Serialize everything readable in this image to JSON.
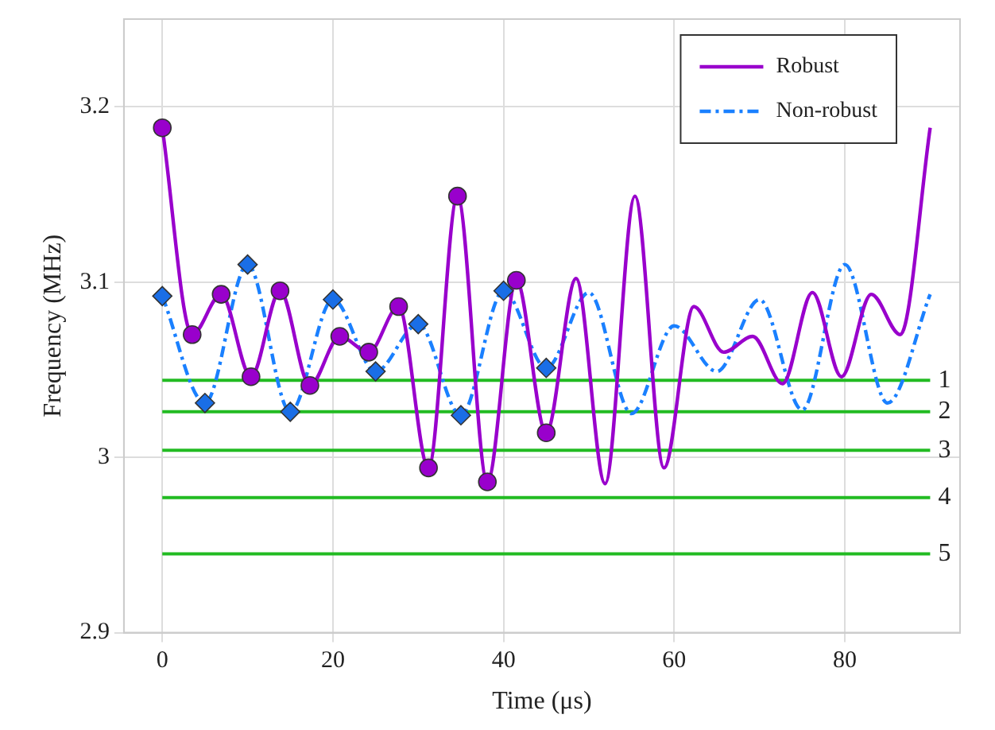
{
  "chart_data": {
    "type": "line",
    "xlabel": "Time (μs)",
    "ylabel": "Frequency (MHz)",
    "xlim": [
      -4.5,
      93.5
    ],
    "xticks": [
      0,
      20,
      40,
      60,
      80
    ],
    "ylim": [
      2.9,
      3.25
    ],
    "yticks": [
      2.9,
      3,
      3.1,
      3.2
    ],
    "grid": true,
    "legend": "top right",
    "series": [
      {
        "name": "Robust",
        "color": "#9900cc",
        "line_style": "solid",
        "marker": "none",
        "x": [
          0,
          3.5,
          6.9,
          10.4,
          13.8,
          17.3,
          20.8,
          24.2,
          27.7,
          31.2,
          34.6,
          38.1,
          41.5,
          45,
          48.5,
          51.9,
          55.4,
          58.8,
          62.3,
          65.8,
          69.2,
          72.7,
          76.2,
          79.6,
          83.1,
          86.5,
          90
        ],
        "values": [
          3.188,
          3.07,
          3.093,
          3.046,
          3.095,
          3.041,
          3.069,
          3.06,
          3.086,
          2.994,
          3.149,
          2.986,
          3.101,
          3.014,
          3.102,
          2.985,
          3.149,
          2.994,
          3.086,
          3.06,
          3.069,
          3.042,
          3.094,
          3.046,
          3.093,
          3.07,
          3.188
        ]
      },
      {
        "name": "Non-robust",
        "color": "#1a80ff",
        "line_style": "dashed",
        "marker": "none",
        "x": [
          0,
          5,
          10,
          15,
          20,
          25,
          30,
          35,
          40,
          45,
          50,
          55,
          60,
          65,
          70,
          75,
          80,
          85,
          90
        ],
        "values": [
          3.092,
          3.031,
          3.11,
          3.026,
          3.09,
          3.049,
          3.076,
          3.024,
          3.095,
          3.051,
          3.094,
          3.025,
          3.075,
          3.049,
          3.09,
          3.027,
          3.11,
          3.031,
          3.093
        ]
      },
      {
        "type": "scatter",
        "color": "#9900cc",
        "marker": "circle",
        "x": [
          0,
          3.5,
          6.9,
          10.4,
          13.8,
          17.3,
          20.8,
          24.2,
          27.7,
          31.2,
          34.6,
          38.1,
          41.5,
          45
        ],
        "values": [
          3.188,
          3.07,
          3.093,
          3.046,
          3.095,
          3.041,
          3.069,
          3.06,
          3.086,
          2.994,
          3.149,
          2.986,
          3.101,
          3.014
        ]
      },
      {
        "type": "scatter",
        "color": "#1a6ee6",
        "marker": "diamond",
        "x": [
          0,
          5,
          10,
          15,
          20,
          25,
          30,
          35,
          40,
          45
        ],
        "values": [
          3.092,
          3.031,
          3.11,
          3.026,
          3.09,
          3.049,
          3.076,
          3.024,
          3.095,
          3.051
        ]
      },
      {
        "name": "1",
        "color": "#22bb22",
        "x": [
          0,
          90
        ],
        "values": [
          3.044,
          3.044
        ]
      },
      {
        "name": "2",
        "color": "#22bb22",
        "x": [
          0,
          90
        ],
        "values": [
          3.026,
          3.026
        ]
      },
      {
        "name": "3",
        "color": "#22bb22",
        "x": [
          0,
          90
        ],
        "values": [
          3.004,
          3.004
        ]
      },
      {
        "name": "4",
        "color": "#22bb22",
        "x": [
          0,
          90
        ],
        "values": [
          2.977,
          2.977
        ]
      },
      {
        "name": "5",
        "color": "#22bb22",
        "x": [
          0,
          90
        ],
        "values": [
          2.945,
          2.945
        ]
      }
    ]
  }
}
